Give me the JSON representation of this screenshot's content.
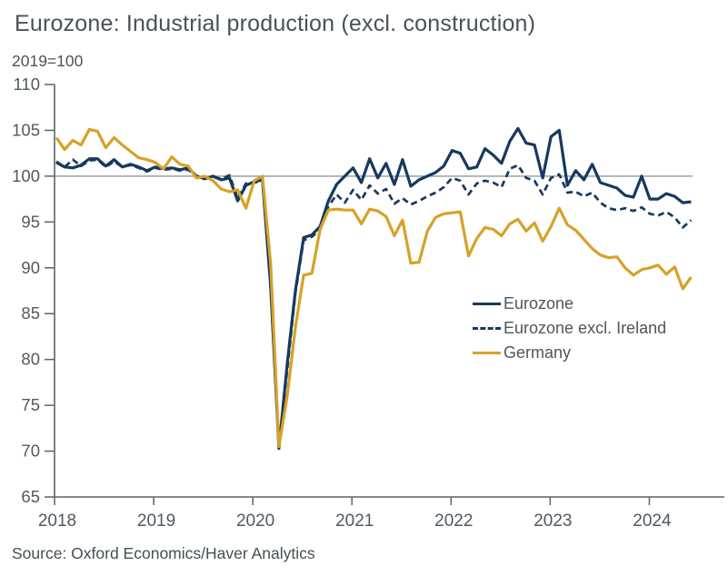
{
  "header": {
    "title": "Eurozone: Industrial production (excl. construction)",
    "unit_label": "2019=100"
  },
  "source": "Source: Oxford Economics/Haver Analytics",
  "colors": {
    "navy": "#16395f",
    "gold": "#d6a227",
    "axis": "#5c646a",
    "tick_text": "#515a61",
    "reference_line": "#7a8085"
  },
  "chart_data": {
    "type": "line",
    "title": "Eurozone: Industrial production (excl. construction)",
    "subtitle": "2019=100",
    "x_start": "2018-01",
    "x_frequency": "monthly",
    "x_ticks": [
      "2018",
      "2019",
      "2020",
      "2021",
      "2022",
      "2023",
      "2024"
    ],
    "y_ticks": [
      110,
      105,
      100,
      95,
      90,
      85,
      80,
      75,
      70,
      65
    ],
    "ylim": [
      65,
      110
    ],
    "reference_line": 100,
    "grid": false,
    "legend_position": "inside-right",
    "series": [
      {
        "name": "Eurozone",
        "style": "solid",
        "color": "#16395f",
        "values": [
          101.5,
          101.0,
          100.9,
          101.2,
          101.9,
          101.9,
          101.1,
          101.8,
          101.0,
          101.3,
          101.0,
          100.6,
          101.0,
          100.8,
          100.9,
          100.7,
          100.9,
          100.0,
          99.7,
          100.0,
          99.6,
          99.8,
          97.3,
          99.0,
          99.4,
          99.6,
          88.0,
          70.3,
          79.5,
          87.5,
          93.3,
          93.6,
          94.5,
          97.3,
          99.1,
          100.0,
          100.9,
          99.3,
          101.9,
          99.8,
          101.4,
          99.1,
          101.8,
          98.9,
          99.6,
          100.0,
          100.4,
          101.1,
          102.8,
          102.5,
          100.8,
          101.0,
          103.0,
          102.3,
          101.4,
          103.8,
          105.2,
          103.6,
          103.4,
          99.8,
          104.3,
          105.0,
          99.0,
          100.6,
          99.6,
          101.3,
          99.3,
          99.0,
          98.7,
          97.9,
          97.7,
          100.0,
          97.5,
          97.5,
          98.1,
          97.8,
          97.1,
          97.2
        ]
      },
      {
        "name": "Eurozone excl. Ireland",
        "style": "dashed",
        "color": "#16395f",
        "values": [
          101.6,
          101.0,
          101.8,
          101.1,
          101.7,
          101.8,
          101.0,
          101.6,
          101.0,
          101.2,
          100.9,
          100.5,
          100.9,
          100.7,
          100.8,
          100.6,
          100.7,
          100.0,
          99.8,
          99.9,
          99.7,
          100.1,
          97.6,
          99.2,
          99.3,
          99.5,
          87.8,
          70.6,
          78.8,
          87.2,
          93.0,
          93.4,
          94.1,
          96.7,
          98.0,
          97.1,
          98.5,
          97.4,
          99.0,
          98.1,
          98.6,
          97.0,
          97.6,
          96.9,
          97.3,
          97.8,
          98.2,
          98.8,
          99.8,
          99.5,
          98.0,
          99.2,
          99.5,
          99.3,
          98.8,
          100.8,
          101.2,
          99.8,
          99.5,
          98.0,
          99.8,
          100.2,
          98.2,
          98.3,
          97.8,
          98.2,
          97.1,
          96.5,
          96.3,
          96.5,
          96.2,
          96.6,
          95.9,
          95.7,
          96.1,
          95.5,
          94.4,
          95.2
        ]
      },
      {
        "name": "Germany",
        "style": "solid",
        "color": "#d6a227",
        "values": [
          104.2,
          102.9,
          103.9,
          103.4,
          105.1,
          104.9,
          103.1,
          104.2,
          103.4,
          102.7,
          102.0,
          101.8,
          101.5,
          100.8,
          102.1,
          101.3,
          101.1,
          99.8,
          100.0,
          99.5,
          98.6,
          98.3,
          98.5,
          96.5,
          99.5,
          100.0,
          90.4,
          70.5,
          76.0,
          83.5,
          89.2,
          89.4,
          94.2,
          96.3,
          96.4,
          96.3,
          96.3,
          94.8,
          96.4,
          96.2,
          95.6,
          93.5,
          95.2,
          90.5,
          90.6,
          94.0,
          95.5,
          95.9,
          96.0,
          96.1,
          91.3,
          93.2,
          94.4,
          94.2,
          93.5,
          94.8,
          95.3,
          94.0,
          94.9,
          92.9,
          94.5,
          96.5,
          94.7,
          94.1,
          93.1,
          92.1,
          91.4,
          91.1,
          91.2,
          90.0,
          89.2,
          89.8,
          90.0,
          90.3,
          89.3,
          90.1,
          87.7,
          89.0
        ]
      }
    ]
  }
}
